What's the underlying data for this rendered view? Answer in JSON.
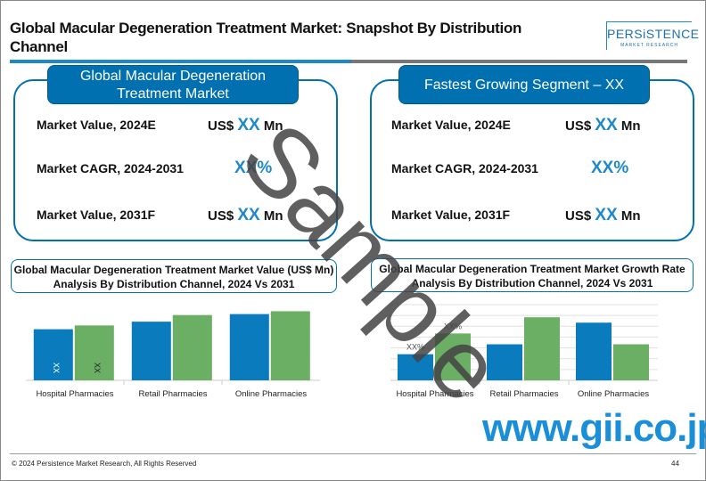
{
  "header": {
    "title": "Global Macular Degeneration Treatment Market: Snapshot By Distribution Channel",
    "logo_main": "PERSiSTENCE",
    "logo_sub": "MARKET RESEARCH"
  },
  "left_card": {
    "heading": "Global Macular Degeneration Treatment Market",
    "rows": [
      {
        "label": "Market Value, 2024E",
        "prefix": "US$",
        "value": "XX",
        "suffix": "Mn"
      },
      {
        "label": "Market CAGR, 2024-2031",
        "prefix": "",
        "value": "XX%",
        "suffix": ""
      },
      {
        "label": "Market Value, 2031F",
        "prefix": "US$",
        "value": "XX",
        "suffix": "Mn"
      }
    ]
  },
  "right_card": {
    "heading": "Fastest Growing Segment – XX",
    "rows": [
      {
        "label": "Market Value, 2024E",
        "prefix": "US$",
        "value": "XX",
        "suffix": "Mn"
      },
      {
        "label": "Market CAGR, 2024-2031",
        "prefix": "",
        "value": "XX%",
        "suffix": ""
      },
      {
        "label": "Market Value, 2031F",
        "prefix": "US$",
        "value": "XX",
        "suffix": "Mn"
      }
    ]
  },
  "chart_data": [
    {
      "type": "bar",
      "title": "Global Macular Degeneration Treatment Market Value (US$ Mn) Analysis By Distribution Channel, 2024 Vs 2031",
      "categories": [
        "Hospital Pharmacies",
        "Retail Pharmacies",
        "Online Pharmacies"
      ],
      "series": [
        {
          "name": "2024",
          "color": "#0a7bbd",
          "values": [
            54,
            62,
            70
          ]
        },
        {
          "name": "2031",
          "color": "#6aaf64",
          "values": [
            58,
            69,
            73
          ]
        }
      ],
      "data_labels": [
        "XX",
        "XX"
      ],
      "ylim": [
        0,
        80
      ],
      "grid": false
    },
    {
      "type": "bar",
      "title": "Global Macular Degeneration Treatment Market Growth Rate Analysis By Distribution Channel, 2024 Vs 2031",
      "categories": [
        "Hospital Pharmacies",
        "Retail Pharmacies",
        "Online Pharmacies"
      ],
      "series": [
        {
          "name": "2024",
          "color": "#0a7bbd",
          "values": [
            29,
            40,
            64
          ]
        },
        {
          "name": "2031",
          "color": "#6aaf64",
          "values": [
            52,
            70,
            40
          ]
        }
      ],
      "data_labels": [
        "XX%",
        "XX%"
      ],
      "ylim": [
        0,
        84
      ],
      "grid": true
    }
  ],
  "watermark": {
    "text": "Sample",
    "site": "www.gii.co.jp"
  },
  "footer": {
    "copyright": "© 2024 Persistence Market Research, All Rights Reserved",
    "page": "44"
  }
}
